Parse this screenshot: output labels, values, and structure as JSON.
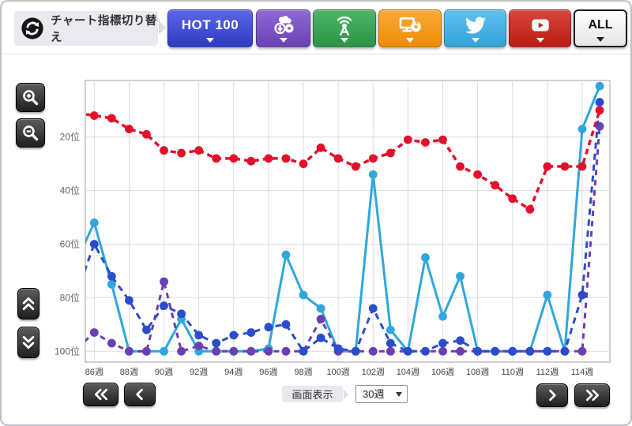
{
  "header": {
    "switch_label": "チャート指標切り替え",
    "buttons": [
      {
        "id": "hot100",
        "label": "HOT 100",
        "icon": "",
        "color": "#3a49d3"
      },
      {
        "id": "download",
        "label": "",
        "icon": "cloud-download-cd-icon",
        "color": "#7a52c6"
      },
      {
        "id": "radio",
        "label": "",
        "icon": "radio-tower-icon",
        "color": "#38a357"
      },
      {
        "id": "lookup",
        "label": "",
        "icon": "monitor-cd-icon",
        "color": "#f49a1e"
      },
      {
        "id": "twitter",
        "label": "",
        "icon": "twitter-bird-icon",
        "color": "#45b0e3"
      },
      {
        "id": "youtube",
        "label": "",
        "icon": "youtube-play-icon",
        "color": "#c8221b"
      },
      {
        "id": "all",
        "label": "ALL",
        "icon": "",
        "color": "#f2f2f2"
      }
    ]
  },
  "side_icons": [
    "zoom-in-icon",
    "zoom-out-icon",
    "double-chevron-up-icon",
    "double-chevron-down-icon"
  ],
  "bottom": {
    "display_label": "画面表示",
    "select_value": "30週",
    "nav_icons": [
      "double-chevron-left-icon",
      "chevron-left-icon",
      "chevron-right-icon",
      "double-chevron-right-icon"
    ]
  },
  "chart_data": {
    "type": "line",
    "y_axis_inverted": true,
    "grid": true,
    "x_ticks": {
      "weeks": [
        86,
        88,
        90,
        92,
        94,
        96,
        98,
        100,
        102,
        104,
        106,
        108,
        110,
        112,
        114
      ],
      "labels": [
        "86週",
        "88週",
        "90週",
        "92週",
        "94週",
        "96週",
        "98週",
        "100週",
        "102週",
        "104週",
        "106週",
        "108週",
        "110週",
        "112週",
        "114週"
      ]
    },
    "y_ticks": {
      "ranks": [
        20,
        40,
        60,
        80,
        100
      ],
      "labels": [
        "20位",
        "40位",
        "60位",
        "80位",
        "100位"
      ]
    },
    "visible_week_range": [
      86,
      115
    ],
    "rank_range": [
      1,
      100
    ],
    "weeks": [
      85,
      86,
      87,
      88,
      89,
      90,
      91,
      92,
      93,
      94,
      95,
      96,
      97,
      98,
      99,
      100,
      101,
      102,
      103,
      104,
      105,
      106,
      107,
      108,
      109,
      110,
      111,
      112,
      113,
      114,
      115
    ],
    "series": [
      {
        "name": "sky-blue-metric",
        "color": "#30a6dd",
        "dash": "",
        "width": 3,
        "values": [
          66,
          52,
          75,
          100,
          100,
          100,
          88,
          100,
          100,
          100,
          100,
          99,
          64,
          79,
          84,
          100,
          100,
          34,
          92,
          100,
          65,
          87,
          72,
          100,
          100,
          100,
          100,
          79,
          100,
          17,
          1
        ]
      },
      {
        "name": "purple-metric",
        "color": "#6a3fb1",
        "dash": "7 6",
        "width": 3,
        "values": [
          99,
          93,
          97,
          100,
          100,
          74,
          100,
          98,
          100,
          100,
          100,
          100,
          100,
          100,
          88,
          100,
          100,
          100,
          100,
          100,
          100,
          100,
          100,
          100,
          100,
          100,
          100,
          100,
          100,
          100,
          16
        ]
      },
      {
        "name": "blue-metric",
        "color": "#2b4ccb",
        "dash": "8 6",
        "width": 3,
        "values": [
          78,
          60,
          72,
          81,
          92,
          83,
          86,
          94,
          97,
          94,
          93,
          91,
          90,
          100,
          95,
          99,
          100,
          84,
          97,
          100,
          100,
          97,
          96,
          100,
          100,
          100,
          100,
          100,
          100,
          79,
          7
        ]
      },
      {
        "name": "red-hot100-rank",
        "color": "#e1112c",
        "dash": "7 5",
        "width": 3.5,
        "values": [
          11,
          12,
          13,
          17,
          19,
          25,
          26,
          25,
          28,
          28,
          29,
          28,
          28,
          30,
          24,
          28,
          31,
          28,
          26,
          21,
          22,
          21,
          31,
          34,
          38,
          43,
          47,
          31,
          31,
          31,
          10
        ]
      }
    ]
  }
}
